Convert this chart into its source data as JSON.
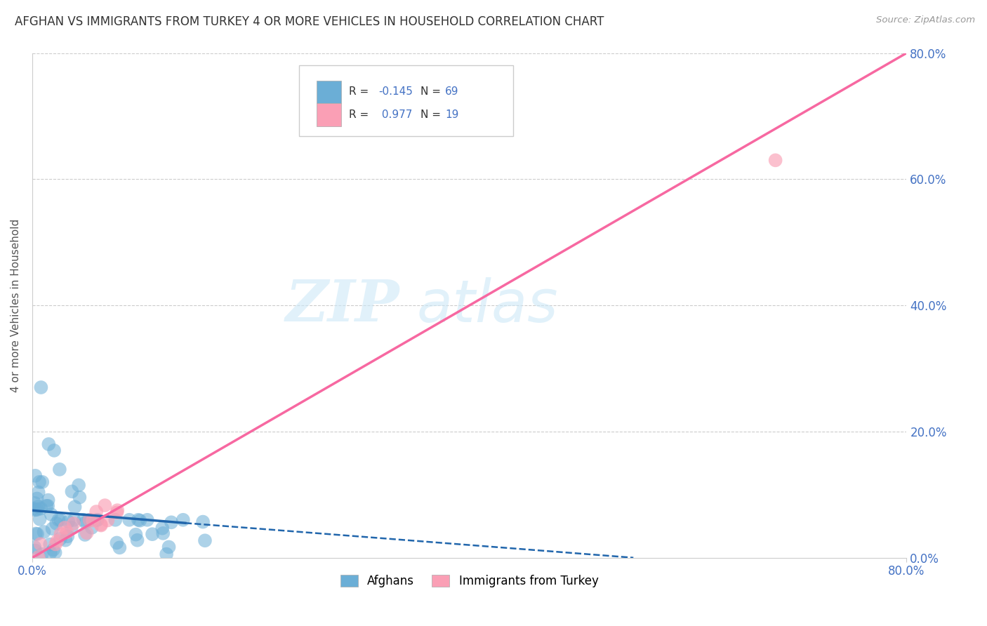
{
  "title": "AFGHAN VS IMMIGRANTS FROM TURKEY 4 OR MORE VEHICLES IN HOUSEHOLD CORRELATION CHART",
  "source": "Source: ZipAtlas.com",
  "ylabel": "4 or more Vehicles in Household",
  "xlim": [
    0.0,
    0.8
  ],
  "ylim": [
    0.0,
    0.8
  ],
  "xtick_positions": [
    0.0,
    0.8
  ],
  "xticklabels": [
    "0.0%",
    "80.0%"
  ],
  "ytick_positions": [
    0.0,
    0.2,
    0.4,
    0.6,
    0.8
  ],
  "yticklabels": [
    "0.0%",
    "20.0%",
    "40.0%",
    "60.0%",
    "80.0%"
  ],
  "grid_yticks": [
    0.2,
    0.4,
    0.6,
    0.8
  ],
  "afghans_color": "#6baed6",
  "turkey_color": "#fa9fb5",
  "afghans_R": -0.145,
  "afghans_N": 69,
  "turkey_R": 0.977,
  "turkey_N": 19,
  "legend_label_afghans": "Afghans",
  "legend_label_turkey": "Immigrants from Turkey",
  "watermark_zip": "ZIP",
  "watermark_atlas": "atlas",
  "background_color": "#ffffff",
  "af_trend_x0": 0.0,
  "af_trend_y0": 0.075,
  "af_trend_x1_solid": 0.14,
  "af_trend_y1_solid": 0.055,
  "af_trend_x1_dash": 0.55,
  "af_trend_y1_dash": 0.0,
  "tr_trend_x0": 0.0,
  "tr_trend_y0": 0.0,
  "tr_trend_x1": 0.8,
  "tr_trend_y1": 0.8
}
